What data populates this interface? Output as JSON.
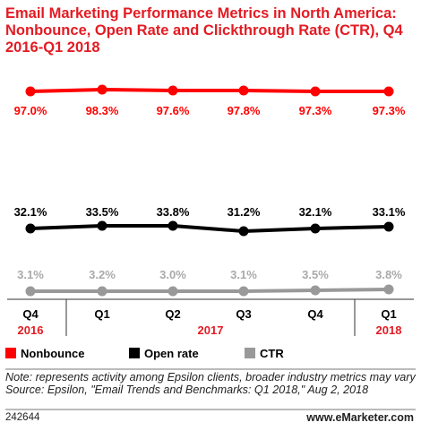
{
  "title": "Email Marketing Performance Metrics in North America: Nonbounce, Open Rate and Clickthrough Rate (CTR), Q4 2016-Q1 2018",
  "chart_data": {
    "type": "line",
    "categories": [
      "Q4",
      "Q1",
      "Q2",
      "Q3",
      "Q4",
      "Q1"
    ],
    "year_labels": [
      {
        "label": "2016",
        "from": 0,
        "to": 0
      },
      {
        "label": "2017",
        "from": 1,
        "to": 4
      },
      {
        "label": "2018",
        "from": 5,
        "to": 5
      }
    ],
    "series": [
      {
        "name": "Nonbounce",
        "color": "#ff0000",
        "values": [
          97.0,
          98.3,
          97.6,
          97.8,
          97.3,
          97.3
        ],
        "labels": [
          "97.0%",
          "98.3%",
          "97.6%",
          "97.8%",
          "97.3%",
          "97.3%"
        ]
      },
      {
        "name": "Open rate",
        "color": "#000000",
        "values": [
          32.1,
          33.5,
          33.8,
          31.2,
          32.1,
          33.1
        ],
        "labels": [
          "32.1%",
          "33.5%",
          "33.8%",
          "31.2%",
          "32.1%",
          "33.1%"
        ]
      },
      {
        "name": "CTR",
        "color": "#999999",
        "values": [
          3.1,
          3.2,
          3.0,
          3.1,
          3.5,
          3.8
        ],
        "labels": [
          "3.1%",
          "3.2%",
          "3.0%",
          "3.1%",
          "3.5%",
          "3.8%"
        ]
      }
    ],
    "year_color": "#e31b23",
    "legend_position": "bottom-left",
    "grid": false
  },
  "note": "Note: represents activity among Epsilon clients, broader industry metrics may vary",
  "source": "Source: Epsilon, \"Email Trends and Benchmarks: Q1 2018,\" Aug 2, 2018",
  "footer": {
    "id": "242644",
    "brand": "www.eMarketer.com"
  }
}
